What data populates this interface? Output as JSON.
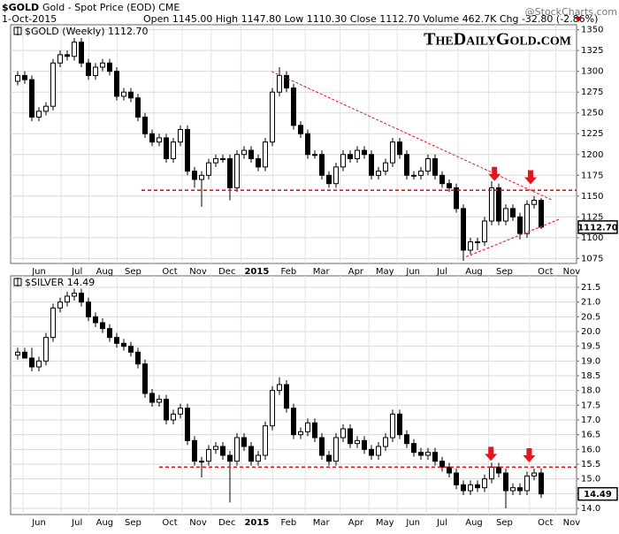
{
  "header": {
    "symbol": "$GOLD",
    "description": "Gold - Spot Price (EOD)  CME",
    "date": "1-Oct-2015",
    "quote": "Open 1145.00  High 1147.80  Low 1110.30  Close 1112.70  Volume 462.7K  Chg -32.80 (-2.86%)",
    "source": "@StockCharts.com"
  },
  "watermark": "TheDailyGold.com",
  "chart_data": [
    {
      "type": "candlestick",
      "title": "$GOLD (Weekly) 1112.70",
      "last_label": "1112.70",
      "xlim": [
        -1,
        79
      ],
      "xticks": [
        {
          "value": 3,
          "label": "Jun"
        },
        {
          "value": 8.4,
          "label": "Jul"
        },
        {
          "value": 12.3,
          "label": "Aug"
        },
        {
          "value": 16.3,
          "label": "Sep"
        },
        {
          "value": 21.5,
          "label": "Oct"
        },
        {
          "value": 25.5,
          "label": "Nov"
        },
        {
          "value": 29.6,
          "label": "Dec"
        },
        {
          "value": 33.8,
          "label": "2015"
        },
        {
          "value": 38.3,
          "label": "Feb"
        },
        {
          "value": 42.9,
          "label": "Mar"
        },
        {
          "value": 47.8,
          "label": "Apr"
        },
        {
          "value": 51.9,
          "label": "May"
        },
        {
          "value": 55.9,
          "label": "Jun"
        },
        {
          "value": 60,
          "label": "Jul"
        },
        {
          "value": 64.5,
          "label": "Aug"
        },
        {
          "value": 68.8,
          "label": "Sep"
        },
        {
          "value": 74.6,
          "label": "Oct"
        },
        {
          "value": 78.3,
          "label": "Nov"
        }
      ],
      "ylim": [
        1069,
        1356
      ],
      "yticks": [
        1075,
        1100,
        1125,
        1150,
        1175,
        1200,
        1225,
        1250,
        1275,
        1300,
        1325,
        1350
      ],
      "grid": true,
      "open": [
        1288,
        1295,
        1290,
        1245,
        1252,
        1258,
        1310,
        1320,
        1318,
        1335,
        1310,
        1295,
        1305,
        1310,
        1300,
        1270,
        1275,
        1268,
        1245,
        1225,
        1215,
        1220,
        1195,
        1215,
        1230,
        1180,
        1170,
        1175,
        1190,
        1195,
        1195,
        1160,
        1200,
        1205,
        1195,
        1185,
        1215,
        1275,
        1295,
        1280,
        1235,
        1225,
        1200,
        1200,
        1175,
        1165,
        1185,
        1200,
        1195,
        1205,
        1200,
        1175,
        1180,
        1190,
        1215,
        1200,
        1175,
        1175,
        1180,
        1195,
        1175,
        1165,
        1160,
        1135,
        1085,
        1095,
        1095,
        1120,
        1160,
        1120,
        1135,
        1125,
        1105,
        1140,
        1145
      ],
      "high": [
        1300,
        1300,
        1295,
        1257,
        1263,
        1315,
        1325,
        1325,
        1340,
        1340,
        1315,
        1310,
        1315,
        1315,
        1305,
        1280,
        1280,
        1273,
        1250,
        1230,
        1225,
        1225,
        1220,
        1235,
        1235,
        1185,
        1180,
        1195,
        1200,
        1200,
        1200,
        1205,
        1210,
        1210,
        1200,
        1220,
        1280,
        1305,
        1300,
        1285,
        1240,
        1230,
        1205,
        1205,
        1180,
        1190,
        1205,
        1205,
        1210,
        1210,
        1205,
        1185,
        1195,
        1220,
        1220,
        1205,
        1180,
        1185,
        1200,
        1200,
        1180,
        1170,
        1165,
        1140,
        1100,
        1100,
        1125,
        1168,
        1165,
        1140,
        1140,
        1130,
        1145,
        1150,
        1147.8
      ],
      "low": [
        1283,
        1285,
        1240,
        1240,
        1247,
        1253,
        1305,
        1313,
        1313,
        1305,
        1290,
        1290,
        1300,
        1295,
        1265,
        1265,
        1263,
        1240,
        1220,
        1210,
        1210,
        1190,
        1190,
        1210,
        1175,
        1160,
        1137,
        1170,
        1185,
        1190,
        1145,
        1155,
        1195,
        1190,
        1180,
        1180,
        1210,
        1270,
        1275,
        1230,
        1220,
        1195,
        1195,
        1170,
        1160,
        1160,
        1180,
        1190,
        1190,
        1195,
        1170,
        1170,
        1175,
        1185,
        1195,
        1170,
        1170,
        1170,
        1175,
        1170,
        1160,
        1155,
        1130,
        1072,
        1080,
        1085,
        1090,
        1115,
        1115,
        1115,
        1120,
        1098,
        1100,
        1135,
        1110.3
      ],
      "close": [
        1295,
        1290,
        1245,
        1252,
        1258,
        1310,
        1320,
        1318,
        1335,
        1310,
        1295,
        1305,
        1310,
        1300,
        1270,
        1275,
        1268,
        1245,
        1225,
        1215,
        1220,
        1195,
        1215,
        1230,
        1180,
        1170,
        1175,
        1190,
        1195,
        1195,
        1160,
        1200,
        1205,
        1195,
        1185,
        1215,
        1275,
        1295,
        1280,
        1235,
        1225,
        1200,
        1200,
        1175,
        1165,
        1185,
        1200,
        1195,
        1205,
        1200,
        1175,
        1180,
        1190,
        1215,
        1200,
        1175,
        1175,
        1180,
        1195,
        1175,
        1165,
        1160,
        1135,
        1085,
        1095,
        1095,
        1120,
        1160,
        1120,
        1135,
        1125,
        1105,
        1140,
        1145,
        1112.7
      ],
      "annotations": {
        "color": "#e8141b",
        "hlines": [
          {
            "value": 1157,
            "from": 17.5
          }
        ],
        "lines": [
          {
            "x": [
              35.9,
              75.6
            ],
            "y": [
              1300,
              1145
            ]
          },
          {
            "x": [
              63.4,
              76.5
            ],
            "y": [
              1077,
              1122
            ]
          }
        ],
        "arrows": [
          {
            "x": 67.4,
            "y": 1166
          },
          {
            "x": 72.5,
            "y": 1162
          }
        ]
      }
    },
    {
      "type": "candlestick",
      "title": "$SILVER 14.49",
      "last_label": "14.49",
      "xlim": [
        -1,
        79
      ],
      "xticks": [
        {
          "value": 3,
          "label": "Jun"
        },
        {
          "value": 8.4,
          "label": "Jul"
        },
        {
          "value": 12.3,
          "label": "Aug"
        },
        {
          "value": 16.3,
          "label": "Sep"
        },
        {
          "value": 21.5,
          "label": "Oct"
        },
        {
          "value": 25.5,
          "label": "Nov"
        },
        {
          "value": 29.6,
          "label": "Dec"
        },
        {
          "value": 33.8,
          "label": "2015"
        },
        {
          "value": 38.3,
          "label": "Feb"
        },
        {
          "value": 42.9,
          "label": "Mar"
        },
        {
          "value": 47.8,
          "label": "Apr"
        },
        {
          "value": 51.9,
          "label": "May"
        },
        {
          "value": 55.9,
          "label": "Jun"
        },
        {
          "value": 60,
          "label": "Jul"
        },
        {
          "value": 64.5,
          "label": "Aug"
        },
        {
          "value": 68.8,
          "label": "Sep"
        },
        {
          "value": 74.6,
          "label": "Oct"
        },
        {
          "value": 78.3,
          "label": "Nov"
        }
      ],
      "ylim": [
        13.79,
        21.89
      ],
      "yticks": [
        {
          "value": 14,
          "label": "14.0"
        },
        14.5,
        {
          "value": 15,
          "label": "15.0"
        },
        15.5,
        {
          "value": 16,
          "label": "16.0"
        },
        16.5,
        {
          "value": 17,
          "label": "17.0"
        },
        17.5,
        {
          "value": 18,
          "label": "18.0"
        },
        18.5,
        {
          "value": 19,
          "label": "19.0"
        },
        19.5,
        {
          "value": 20,
          "label": "20.0"
        },
        20.5,
        {
          "value": 21,
          "label": "21.0"
        },
        21.5
      ],
      "grid": true,
      "open": [
        19.2,
        19.3,
        19.1,
        18.8,
        19.0,
        19.8,
        20.8,
        21.0,
        21.2,
        21.3,
        21.0,
        20.5,
        20.3,
        20.1,
        19.8,
        19.6,
        19.5,
        19.3,
        18.9,
        17.9,
        17.6,
        17.7,
        17.0,
        17.2,
        17.4,
        16.3,
        15.6,
        15.6,
        16.0,
        16.1,
        15.8,
        15.6,
        16.4,
        16.1,
        15.6,
        15.8,
        16.8,
        18.0,
        18.2,
        17.4,
        16.5,
        16.6,
        16.9,
        16.4,
        15.8,
        15.6,
        16.4,
        16.7,
        16.2,
        16.3,
        16.0,
        15.8,
        16.1,
        16.4,
        17.2,
        16.5,
        16.2,
        15.9,
        15.8,
        15.9,
        15.6,
        15.4,
        15.2,
        14.8,
        14.6,
        14.8,
        14.7,
        15.0,
        15.4,
        15.2,
        14.6,
        14.7,
        14.6,
        15.1,
        15.2
      ],
      "high": [
        19.45,
        19.45,
        19.45,
        19.15,
        19.95,
        20.95,
        21.15,
        21.35,
        21.45,
        21.45,
        21.15,
        20.65,
        20.45,
        20.25,
        19.95,
        19.75,
        19.65,
        19.45,
        19.05,
        18.05,
        17.85,
        17.85,
        17.35,
        17.55,
        17.55,
        16.45,
        15.75,
        16.15,
        16.25,
        16.25,
        15.95,
        16.55,
        16.55,
        16.25,
        15.95,
        16.95,
        18.15,
        18.45,
        18.35,
        17.55,
        16.75,
        17.05,
        17.05,
        16.55,
        15.95,
        16.55,
        16.85,
        16.85,
        16.45,
        16.45,
        16.15,
        16.25,
        16.55,
        17.35,
        17.35,
        16.65,
        16.35,
        16.05,
        16.05,
        16.05,
        15.75,
        15.55,
        15.35,
        14.95,
        14.95,
        14.95,
        15.15,
        15.55,
        15.55,
        15.35,
        14.85,
        14.85,
        15.25,
        15.35,
        15.35
      ],
      "low": [
        19.05,
        19.15,
        18.65,
        18.65,
        18.85,
        19.65,
        20.65,
        20.85,
        21.05,
        20.85,
        20.35,
        20.15,
        19.95,
        19.65,
        19.45,
        19.35,
        19.15,
        18.75,
        17.75,
        17.45,
        17.45,
        16.85,
        16.85,
        17.05,
        16.15,
        15.45,
        15.05,
        15.45,
        15.85,
        15.65,
        14.2,
        15.45,
        15.95,
        15.45,
        15.45,
        15.65,
        16.65,
        17.85,
        17.25,
        16.35,
        16.35,
        16.45,
        16.25,
        15.65,
        15.45,
        15.45,
        16.25,
        16.05,
        16.05,
        15.85,
        15.65,
        15.65,
        15.95,
        16.25,
        16.35,
        16.05,
        15.75,
        15.65,
        15.65,
        15.45,
        15.25,
        15.05,
        14.65,
        14.45,
        14.45,
        14.55,
        14.55,
        14.85,
        15.05,
        14.0,
        14.45,
        14.45,
        14.45,
        14.95,
        14.35
      ],
      "close": [
        19.3,
        19.1,
        18.8,
        19.0,
        19.8,
        20.8,
        21.0,
        21.2,
        21.3,
        21.0,
        20.5,
        20.3,
        20.1,
        19.8,
        19.6,
        19.5,
        19.3,
        18.9,
        17.9,
        17.6,
        17.7,
        17.0,
        17.2,
        17.4,
        16.3,
        15.6,
        15.6,
        16.0,
        16.1,
        15.8,
        15.6,
        16.4,
        16.1,
        15.6,
        15.8,
        16.8,
        18.0,
        18.2,
        17.4,
        16.5,
        16.6,
        16.9,
        16.4,
        15.8,
        15.6,
        16.4,
        16.7,
        16.2,
        16.3,
        16.0,
        15.8,
        16.1,
        16.4,
        17.2,
        16.5,
        16.2,
        15.9,
        15.8,
        15.9,
        15.6,
        15.4,
        15.2,
        14.8,
        14.6,
        14.8,
        14.7,
        15.0,
        15.4,
        15.2,
        14.6,
        14.7,
        14.6,
        15.1,
        15.2,
        14.49
      ],
      "annotations": {
        "color": "#e8141b",
        "hlines": [
          {
            "value": 15.4,
            "from": 20
          }
        ],
        "lines": [],
        "arrows": [
          {
            "x": 66.9,
            "y": 15.55
          },
          {
            "x": 72.3,
            "y": 15.5
          }
        ]
      }
    }
  ]
}
